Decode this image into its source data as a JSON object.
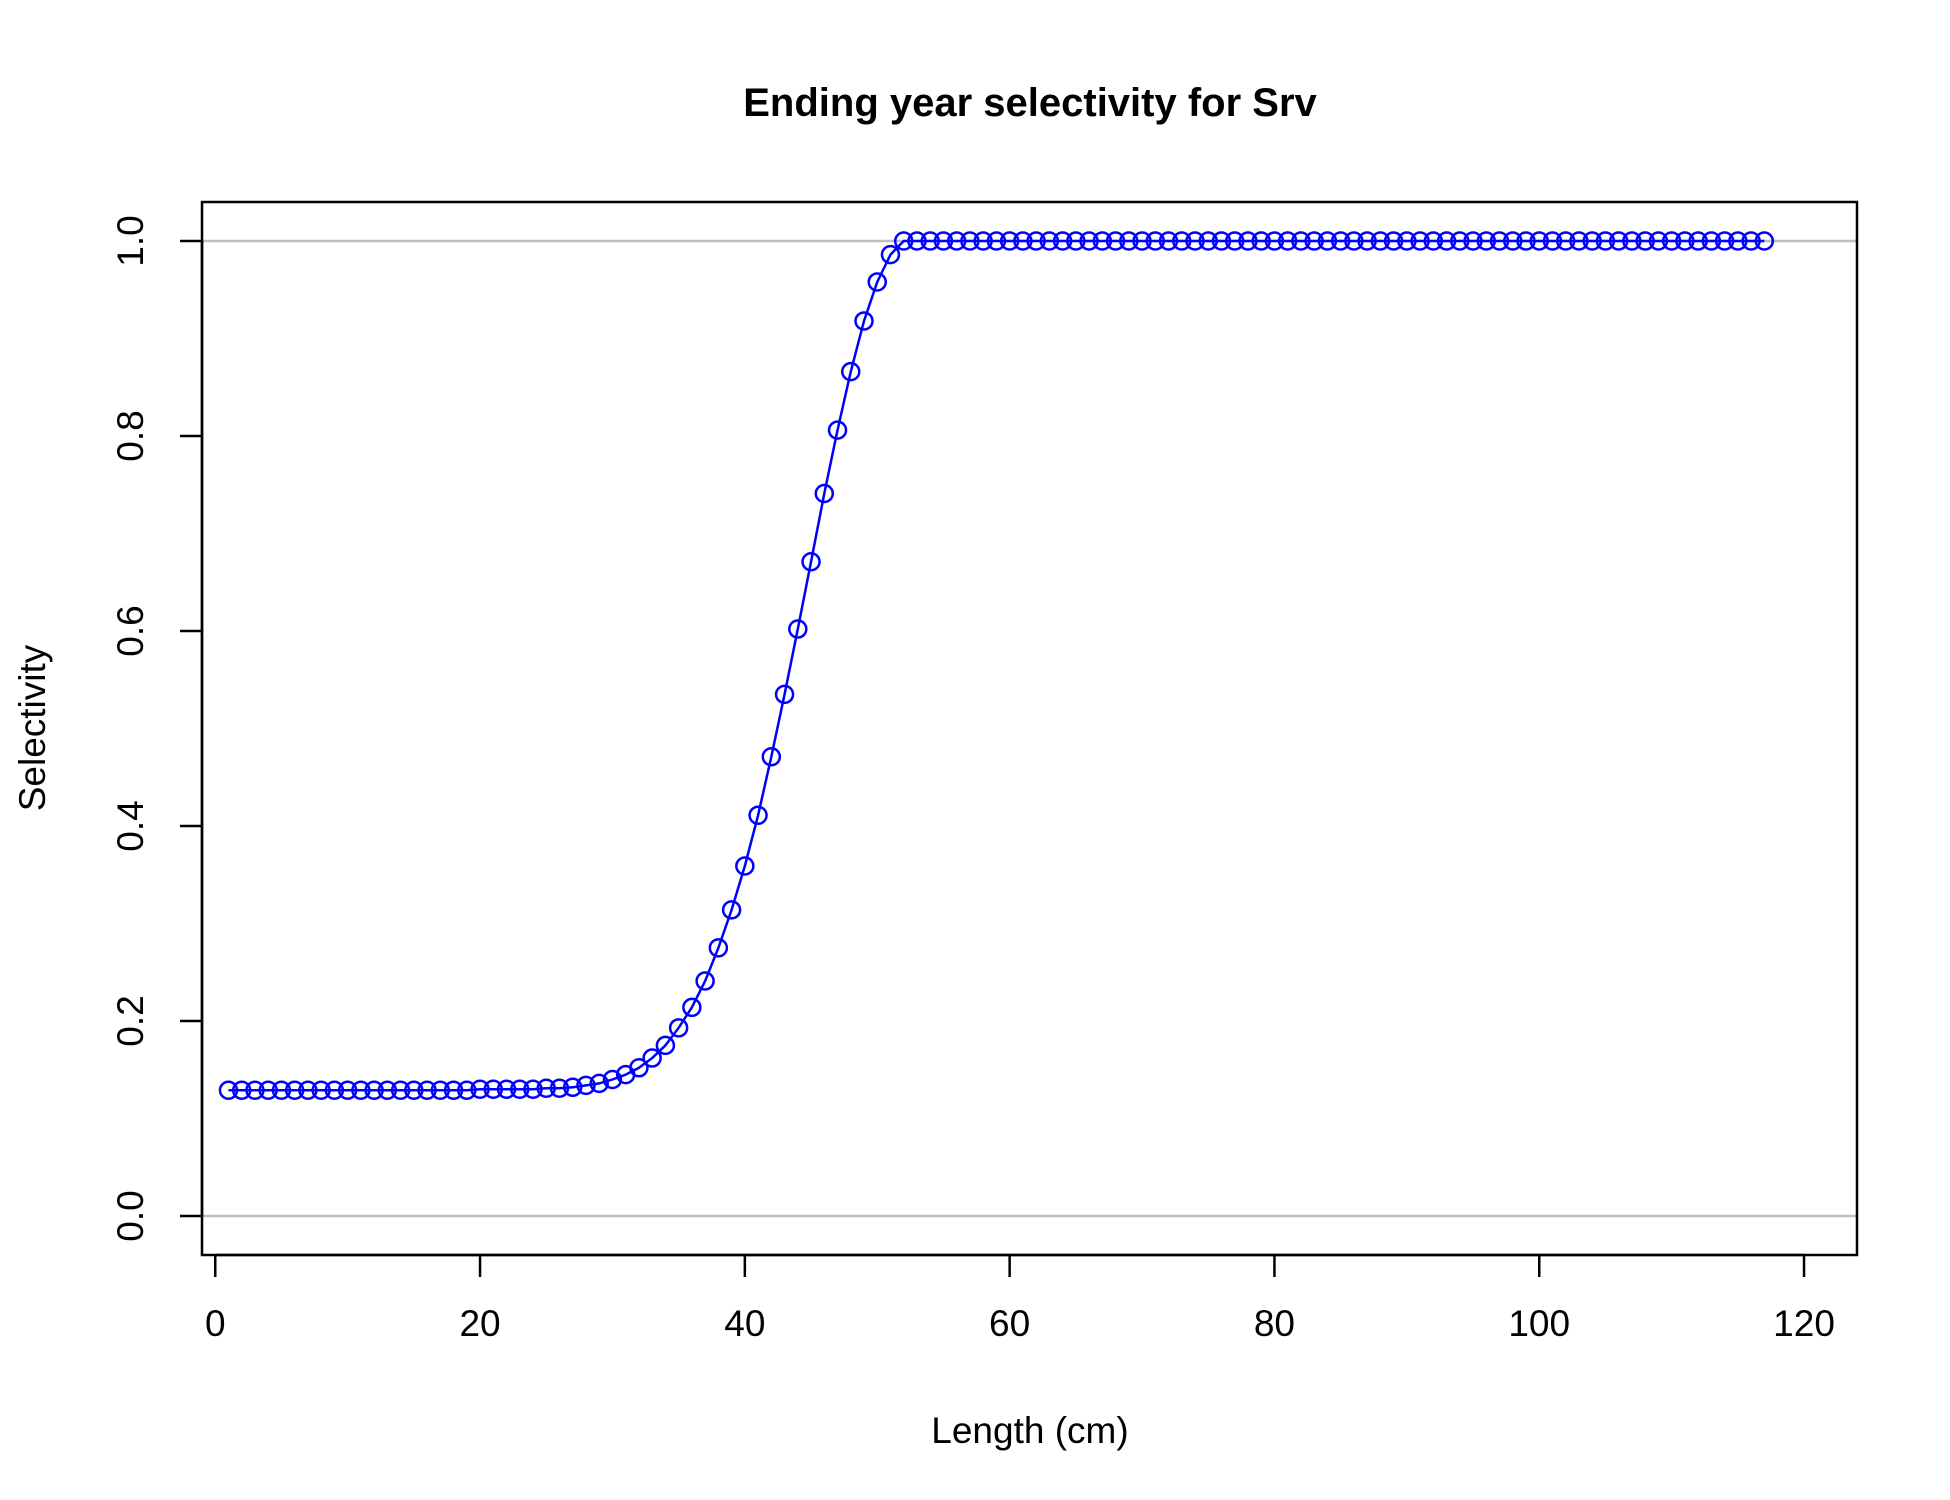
{
  "chart_data": {
    "type": "line",
    "title": "Ending year selectivity for Srv",
    "xlabel": "Length (cm)",
    "ylabel": "Selectivity",
    "xlim": [
      -1,
      124
    ],
    "ylim": [
      -0.04,
      1.04
    ],
    "x_ticks": [
      "0",
      "20",
      "40",
      "60",
      "80",
      "100",
      "120"
    ],
    "y_ticks": [
      "0.0",
      "0.2",
      "0.4",
      "0.6",
      "0.8",
      "1.0"
    ],
    "reference_lines_y": [
      0,
      1
    ],
    "grid": false,
    "legend": "none",
    "colors": {
      "series": "#0000ff",
      "reference": "#bebebe",
      "frame": "#000000"
    },
    "series": [
      {
        "marker": "open-circle",
        "x": [
          1,
          2,
          3,
          4,
          5,
          6,
          7,
          8,
          9,
          10,
          11,
          12,
          13,
          14,
          15,
          16,
          17,
          18,
          19,
          20,
          21,
          22,
          23,
          24,
          25,
          26,
          27,
          28,
          29,
          30,
          31,
          32,
          33,
          34,
          35,
          36,
          37,
          38,
          39,
          40,
          41,
          42,
          43,
          44,
          45,
          46,
          47,
          48,
          49,
          50,
          51,
          52,
          53,
          54,
          55,
          56,
          57,
          58,
          59,
          60,
          61,
          62,
          63,
          64,
          65,
          66,
          67,
          68,
          69,
          70,
          71,
          72,
          73,
          74,
          75,
          76,
          77,
          78,
          79,
          80,
          81,
          82,
          83,
          84,
          85,
          86,
          87,
          88,
          89,
          90,
          91,
          92,
          93,
          94,
          95,
          96,
          97,
          98,
          99,
          100,
          101,
          102,
          103,
          104,
          105,
          106,
          107,
          108,
          109,
          110,
          111,
          112,
          113,
          114,
          115,
          116,
          117
        ],
        "y": [
          0.129,
          0.129,
          0.129,
          0.129,
          0.129,
          0.129,
          0.129,
          0.129,
          0.129,
          0.129,
          0.129,
          0.129,
          0.129,
          0.129,
          0.129,
          0.129,
          0.129,
          0.129,
          0.129,
          0.13,
          0.13,
          0.13,
          0.13,
          0.13,
          0.131,
          0.131,
          0.132,
          0.134,
          0.136,
          0.14,
          0.145,
          0.152,
          0.162,
          0.175,
          0.193,
          0.214,
          0.241,
          0.275,
          0.314,
          0.359,
          0.411,
          0.471,
          0.535,
          0.602,
          0.671,
          0.741,
          0.806,
          0.866,
          0.918,
          0.958,
          0.986,
          1.0,
          1.0,
          1.0,
          1.0,
          1.0,
          1.0,
          1.0,
          1.0,
          1.0,
          1.0,
          1.0,
          1.0,
          1.0,
          1.0,
          1.0,
          1.0,
          1.0,
          1.0,
          1.0,
          1.0,
          1.0,
          1.0,
          1.0,
          1.0,
          1.0,
          1.0,
          1.0,
          1.0,
          1.0,
          1.0,
          1.0,
          1.0,
          1.0,
          1.0,
          1.0,
          1.0,
          1.0,
          1.0,
          1.0,
          1.0,
          1.0,
          1.0,
          1.0,
          1.0,
          1.0,
          1.0,
          1.0,
          1.0,
          1.0,
          1.0,
          1.0,
          1.0,
          1.0,
          1.0,
          1.0,
          1.0,
          1.0,
          1.0,
          1.0,
          1.0,
          1.0,
          1.0,
          1.0,
          1.0,
          1.0,
          1.0
        ]
      }
    ]
  }
}
